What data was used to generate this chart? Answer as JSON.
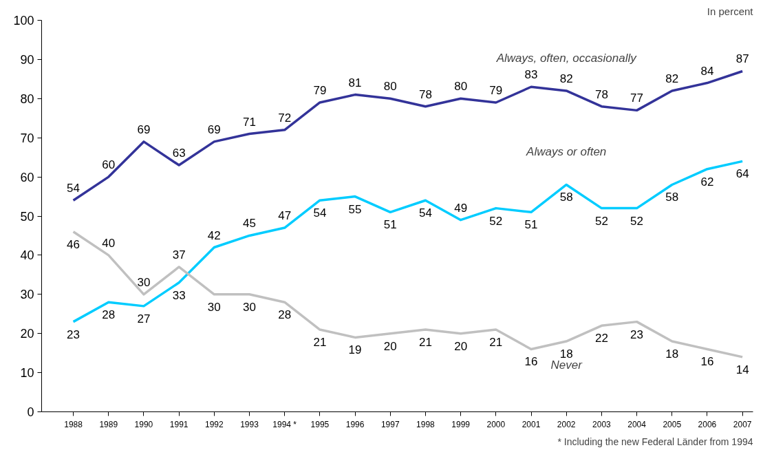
{
  "chart_data": {
    "type": "line",
    "ylabel": "In percent",
    "categories": [
      "1988",
      "1989",
      "1990",
      "1991",
      "1992",
      "1993",
      "1994 *",
      "1995",
      "1996",
      "1997",
      "1998",
      "1999",
      "2000",
      "2001",
      "2002",
      "2003",
      "2004",
      "2005",
      "2006",
      "2007"
    ],
    "series": [
      {
        "name": "Always, often, occasionally",
        "color": "#333399",
        "values": [
          54,
          60,
          69,
          63,
          69,
          71,
          72,
          79,
          81,
          80,
          78,
          80,
          79,
          83,
          82,
          78,
          77,
          82,
          84,
          87
        ]
      },
      {
        "name": "Always or often",
        "color": "#00ccff",
        "values": [
          23,
          28,
          27,
          33,
          42,
          45,
          47,
          54,
          55,
          51,
          54,
          49,
          52,
          51,
          58,
          52,
          52,
          58,
          62,
          64
        ]
      },
      {
        "name": "Never",
        "color": "#c0c0c0",
        "values": [
          46,
          40,
          30,
          37,
          30,
          30,
          28,
          21,
          19,
          20,
          21,
          20,
          21,
          16,
          18,
          22,
          23,
          18,
          16,
          14
        ]
      }
    ],
    "ylim": [
      0,
      100
    ],
    "yticks": [
      0,
      10,
      20,
      30,
      40,
      50,
      60,
      70,
      80,
      90,
      100
    ],
    "data_labels": true,
    "grid": false,
    "legend": false,
    "marker": "none",
    "line_style": "solid",
    "annotations": [
      "* Including the new Federal Länder from 1994"
    ]
  }
}
